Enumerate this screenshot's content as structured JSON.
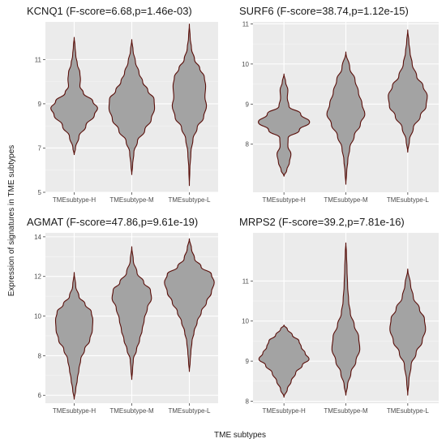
{
  "figure": {
    "xlabel": "TME subtypes",
    "ylabel": "Expression of signatures in TME subtypes"
  },
  "colors": {
    "panel_background": "#ebebeb",
    "violin_fill": "#a3a3a3",
    "violin_outline": "#5a0f0a"
  },
  "chart_data": [
    {
      "type": "violin",
      "title": "KCNQ1 (F-score=6.68,p=1.46e-03)",
      "categories": [
        "TMEsubtype-H",
        "TMEsubtype-M",
        "TMEsubtype-L"
      ],
      "ylim": [
        5,
        12.7
      ],
      "yticks": [
        5,
        7,
        9,
        11
      ],
      "grid": true,
      "violins": [
        {
          "category": "TMEsubtype-H",
          "density": [
            [
              6.7,
              0
            ],
            [
              7.0,
              0.05
            ],
            [
              7.5,
              0.18
            ],
            [
              8.0,
              0.45
            ],
            [
              8.5,
              0.78
            ],
            [
              8.8,
              0.9
            ],
            [
              9.1,
              0.72
            ],
            [
              9.5,
              0.35
            ],
            [
              9.8,
              0.22
            ],
            [
              10.1,
              0.24
            ],
            [
              10.4,
              0.22
            ],
            [
              10.8,
              0.12
            ],
            [
              11.2,
              0.06
            ],
            [
              11.6,
              0.03
            ],
            [
              12.0,
              0
            ]
          ]
        },
        {
          "category": "TMEsubtype-M",
          "density": [
            [
              5.8,
              0
            ],
            [
              6.2,
              0.03
            ],
            [
              6.8,
              0.08
            ],
            [
              7.3,
              0.22
            ],
            [
              7.8,
              0.5
            ],
            [
              8.3,
              0.75
            ],
            [
              8.8,
              0.88
            ],
            [
              9.2,
              0.86
            ],
            [
              9.6,
              0.62
            ],
            [
              10.0,
              0.42
            ],
            [
              10.4,
              0.28
            ],
            [
              10.9,
              0.14
            ],
            [
              11.4,
              0.05
            ],
            [
              11.9,
              0
            ]
          ]
        },
        {
          "category": "TMEsubtype-L",
          "density": [
            [
              5.3,
              0
            ],
            [
              6.0,
              0.02
            ],
            [
              6.8,
              0.06
            ],
            [
              7.4,
              0.14
            ],
            [
              7.9,
              0.3
            ],
            [
              8.4,
              0.55
            ],
            [
              8.9,
              0.66
            ],
            [
              9.3,
              0.6
            ],
            [
              9.8,
              0.63
            ],
            [
              10.2,
              0.58
            ],
            [
              10.6,
              0.4
            ],
            [
              11.0,
              0.2
            ],
            [
              11.5,
              0.08
            ],
            [
              12.0,
              0.03
            ],
            [
              12.6,
              0
            ]
          ]
        }
      ]
    },
    {
      "type": "violin",
      "title": "SURF6 (F-score=38.74,p=1.12e-15)",
      "categories": [
        "TMEsubtype-H",
        "TMEsubtype-M",
        "TMEsubtype-L"
      ],
      "ylim": [
        6.8,
        11.05
      ],
      "yticks": [
        8,
        9,
        10,
        11
      ],
      "grid": true,
      "violins": [
        {
          "category": "TMEsubtype-H",
          "density": [
            [
              7.2,
              0
            ],
            [
              7.35,
              0.1
            ],
            [
              7.55,
              0.2
            ],
            [
              7.75,
              0.25
            ],
            [
              7.95,
              0.14
            ],
            [
              8.15,
              0.15
            ],
            [
              8.35,
              0.55
            ],
            [
              8.55,
              0.92
            ],
            [
              8.75,
              0.6
            ],
            [
              8.95,
              0.18
            ],
            [
              9.15,
              0.12
            ],
            [
              9.35,
              0.14
            ],
            [
              9.55,
              0.06
            ],
            [
              9.75,
              0
            ]
          ]
        },
        {
          "category": "TMEsubtype-M",
          "density": [
            [
              7.0,
              0
            ],
            [
              7.3,
              0.03
            ],
            [
              7.6,
              0.07
            ],
            [
              7.9,
              0.14
            ],
            [
              8.2,
              0.3
            ],
            [
              8.5,
              0.52
            ],
            [
              8.75,
              0.68
            ],
            [
              9.0,
              0.58
            ],
            [
              9.3,
              0.45
            ],
            [
              9.6,
              0.33
            ],
            [
              9.9,
              0.14
            ],
            [
              10.3,
              0
            ]
          ]
        },
        {
          "category": "TMEsubtype-L",
          "density": [
            [
              7.8,
              0
            ],
            [
              8.1,
              0.06
            ],
            [
              8.4,
              0.2
            ],
            [
              8.7,
              0.45
            ],
            [
              8.95,
              0.66
            ],
            [
              9.2,
              0.7
            ],
            [
              9.45,
              0.55
            ],
            [
              9.7,
              0.32
            ],
            [
              10.0,
              0.16
            ],
            [
              10.3,
              0.08
            ],
            [
              10.55,
              0.04
            ],
            [
              10.85,
              0
            ]
          ]
        }
      ]
    },
    {
      "type": "violin",
      "title": "AGMAT (F-score=47.86,p=9.61e-19)",
      "categories": [
        "TMEsubtype-H",
        "TMEsubtype-M",
        "TMEsubtype-L"
      ],
      "ylim": [
        5.6,
        14.2
      ],
      "yticks": [
        6,
        8,
        10,
        12,
        14
      ],
      "grid": true,
      "violins": [
        {
          "category": "TMEsubtype-H",
          "density": [
            [
              5.8,
              0
            ],
            [
              6.3,
              0.06
            ],
            [
              6.8,
              0.12
            ],
            [
              7.3,
              0.18
            ],
            [
              7.8,
              0.25
            ],
            [
              8.3,
              0.4
            ],
            [
              8.8,
              0.6
            ],
            [
              9.3,
              0.7
            ],
            [
              9.8,
              0.72
            ],
            [
              10.2,
              0.66
            ],
            [
              10.6,
              0.42
            ],
            [
              11.0,
              0.18
            ],
            [
              11.5,
              0.06
            ],
            [
              12.2,
              0
            ]
          ]
        },
        {
          "category": "TMEsubtype-M",
          "density": [
            [
              6.8,
              0
            ],
            [
              7.3,
              0.03
            ],
            [
              7.8,
              0.06
            ],
            [
              8.3,
              0.18
            ],
            [
              8.8,
              0.3
            ],
            [
              9.3,
              0.4
            ],
            [
              9.8,
              0.48
            ],
            [
              10.4,
              0.6
            ],
            [
              10.9,
              0.76
            ],
            [
              11.3,
              0.72
            ],
            [
              11.7,
              0.46
            ],
            [
              12.2,
              0.2
            ],
            [
              12.8,
              0.06
            ],
            [
              13.5,
              0
            ]
          ]
        },
        {
          "category": "TMEsubtype-L",
          "density": [
            [
              7.2,
              0
            ],
            [
              7.7,
              0.03
            ],
            [
              8.2,
              0.06
            ],
            [
              8.7,
              0.1
            ],
            [
              9.2,
              0.18
            ],
            [
              9.7,
              0.3
            ],
            [
              10.2,
              0.46
            ],
            [
              10.7,
              0.66
            ],
            [
              11.2,
              0.85
            ],
            [
              11.7,
              0.96
            ],
            [
              12.1,
              0.85
            ],
            [
              12.5,
              0.45
            ],
            [
              12.9,
              0.2
            ],
            [
              13.4,
              0.08
            ],
            [
              13.9,
              0
            ]
          ]
        }
      ]
    },
    {
      "type": "violin",
      "title": "MRPS2 (F-score=39.2,p=7.81e-16)",
      "categories": [
        "TMEsubtype-H",
        "TMEsubtype-M",
        "TMEsubtype-L"
      ],
      "ylim": [
        7.95,
        12.2
      ],
      "yticks": [
        8,
        9,
        10,
        11
      ],
      "grid": true,
      "violins": [
        {
          "category": "TMEsubtype-H",
          "density": [
            [
              8.1,
              0
            ],
            [
              8.3,
              0.12
            ],
            [
              8.5,
              0.26
            ],
            [
              8.7,
              0.42
            ],
            [
              8.9,
              0.66
            ],
            [
              9.05,
              0.9
            ],
            [
              9.2,
              0.76
            ],
            [
              9.35,
              0.62
            ],
            [
              9.5,
              0.54
            ],
            [
              9.65,
              0.3
            ],
            [
              9.8,
              0.12
            ],
            [
              9.9,
              0
            ]
          ]
        },
        {
          "category": "TMEsubtype-M",
          "density": [
            [
              8.15,
              0
            ],
            [
              8.4,
              0.06
            ],
            [
              8.7,
              0.18
            ],
            [
              9.0,
              0.36
            ],
            [
              9.3,
              0.5
            ],
            [
              9.6,
              0.46
            ],
            [
              9.9,
              0.3
            ],
            [
              10.2,
              0.16
            ],
            [
              10.5,
              0.1
            ],
            [
              10.9,
              0.06
            ],
            [
              11.3,
              0.04
            ],
            [
              11.7,
              0.02
            ],
            [
              11.95,
              0
            ]
          ]
        },
        {
          "category": "TMEsubtype-L",
          "density": [
            [
              8.15,
              0
            ],
            [
              8.5,
              0.04
            ],
            [
              8.9,
              0.12
            ],
            [
              9.2,
              0.3
            ],
            [
              9.5,
              0.52
            ],
            [
              9.8,
              0.64
            ],
            [
              10.05,
              0.6
            ],
            [
              10.3,
              0.42
            ],
            [
              10.6,
              0.2
            ],
            [
              10.9,
              0.1
            ],
            [
              11.3,
              0
            ]
          ]
        }
      ]
    }
  ]
}
